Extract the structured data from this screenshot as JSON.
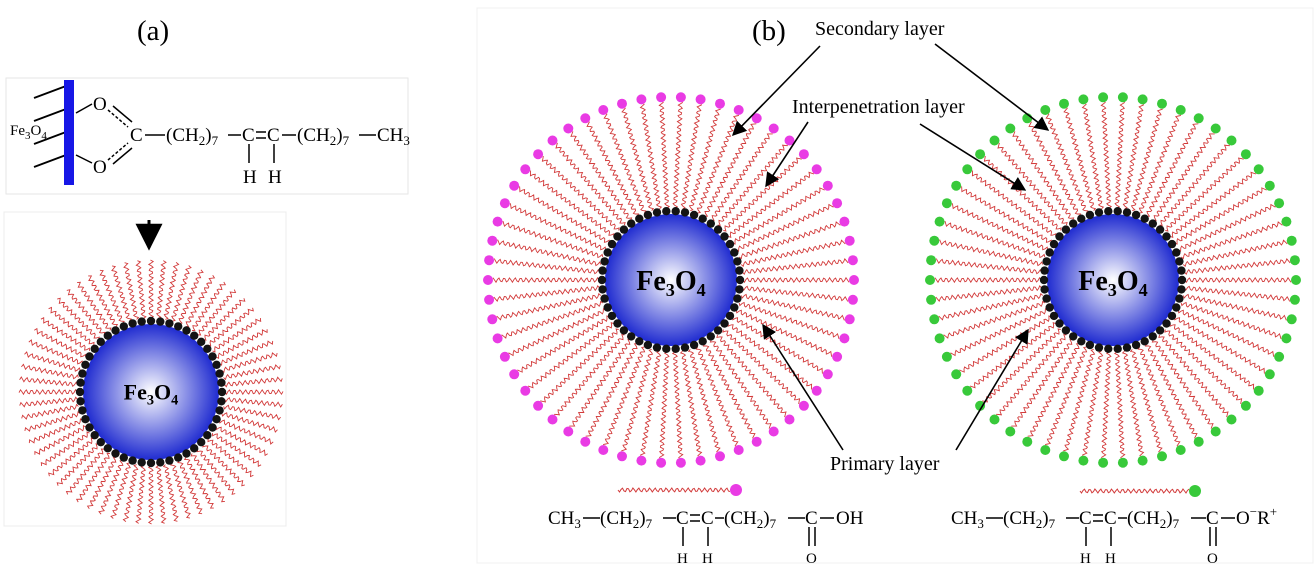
{
  "panels": {
    "a": {
      "label": "(a)"
    },
    "b": {
      "label": "(b)"
    }
  },
  "core_label": {
    "main": "Fe",
    "sub1": "3",
    "mid": "O",
    "sub2": "4"
  },
  "layers": {
    "secondary": "Secondary layer",
    "interpenetration": "Interpenetration layer",
    "primary": "Primary layer"
  },
  "colors": {
    "core_center": "#ffffff",
    "core_edge": "#1f2bd0",
    "chain": "#d23a3a",
    "head_group": "#141414",
    "acid_head": "#e93be4",
    "salt_head": "#38c93a",
    "surface_bar": "#1717e6",
    "structure_box": "#e6e6e6"
  },
  "structure_a": {
    "surface": "Fe",
    "surface_sub1": "3",
    "surface_mid": "O",
    "surface_sub2": "4",
    "o1": "O",
    "o2": "O",
    "c": "C",
    "ch2a": "(CH",
    "ch2a_sub": "2",
    "ch2a_close": ")",
    "ch2a_n": "7",
    "c1": "C",
    "c2": "C",
    "h1": "H",
    "h2": "H",
    "ch2b": "(CH",
    "ch2b_sub": "2",
    "ch2b_close": ")",
    "ch2b_n": "7",
    "ch3": "CH",
    "ch3_sub": "3"
  },
  "formula_acid": {
    "ch3": "CH",
    "ch3_sub": "3",
    "ch2a": "(CH",
    "ch2a_sub": "2",
    "ch2a_close": ")",
    "ch2a_n": "7",
    "c1": "C",
    "c2": "C",
    "h1": "H",
    "h2": "H",
    "ch2b": "(CH",
    "ch2b_sub": "2",
    "ch2b_close": ")",
    "ch2b_n": "7",
    "c3": "C",
    "end": "OH",
    "o": "O"
  },
  "formula_salt": {
    "ch3": "CH",
    "ch3_sub": "3",
    "ch2a": "(CH",
    "ch2a_sub": "2",
    "ch2a_close": ")",
    "ch2a_n": "7",
    "c1": "C",
    "c2": "C",
    "h1": "H",
    "h2": "H",
    "ch2b": "(CH",
    "ch2b_sub": "2",
    "ch2b_close": ")",
    "ch2b_n": "7",
    "c3": "C",
    "end": "O",
    "end_sup": "−",
    "cation": "R",
    "cation_sup": "+",
    "o": "O"
  }
}
